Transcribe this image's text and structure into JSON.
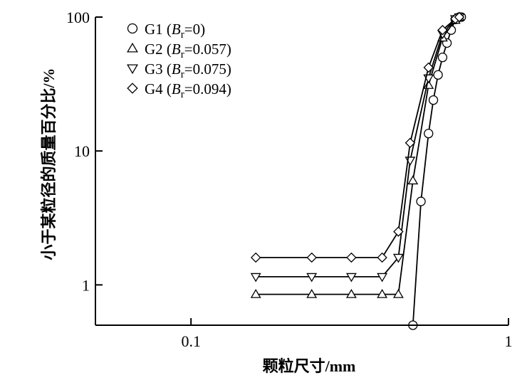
{
  "chart_data": {
    "type": "line",
    "xscale": "log",
    "yscale": "log",
    "xlim": [
      0.05,
      1
    ],
    "ylim": [
      0.5,
      100
    ],
    "xticks": [
      {
        "value": 0.1,
        "label": "0.1"
      },
      {
        "value": 1,
        "label": "1"
      }
    ],
    "yticks": [
      {
        "value": 1,
        "label": "1"
      },
      {
        "value": 10,
        "label": "10"
      },
      {
        "value": 100,
        "label": "100"
      }
    ],
    "xlabel": "颗粒尺寸/mm",
    "ylabel": "小于某粒径的质量百分比/%",
    "legend_position": "top-left",
    "series": [
      {
        "name": "G1",
        "legend": {
          "prefix": "G1 (",
          "italic": "B",
          "sub": "r",
          "suffix": "=0)"
        },
        "marker": "circle",
        "x": [
          0.5,
          0.53,
          0.56,
          0.58,
          0.6,
          0.62,
          0.64,
          0.66,
          0.68,
          0.7,
          0.71
        ],
        "y": [
          0.5,
          4.2,
          13.5,
          24,
          37,
          50,
          64,
          80,
          96,
          100,
          100
        ]
      },
      {
        "name": "G2",
        "legend": {
          "prefix": "G2 (",
          "italic": "B",
          "sub": "r",
          "suffix": "=0.057)"
        },
        "marker": "triangle-up",
        "x": [
          0.16,
          0.24,
          0.32,
          0.4,
          0.45,
          0.5,
          0.56,
          0.62,
          0.68,
          0.7
        ],
        "y": [
          0.85,
          0.85,
          0.85,
          0.85,
          0.85,
          6,
          31,
          70,
          95,
          100
        ]
      },
      {
        "name": "G3",
        "legend": {
          "prefix": "G3 (",
          "italic": "B",
          "sub": "r",
          "suffix": "=0.075)"
        },
        "marker": "triangle-down",
        "x": [
          0.16,
          0.24,
          0.32,
          0.4,
          0.45,
          0.49,
          0.56,
          0.62,
          0.68,
          0.7
        ],
        "y": [
          1.15,
          1.15,
          1.15,
          1.15,
          1.6,
          8.5,
          35,
          75,
          97,
          100
        ]
      },
      {
        "name": "G4",
        "legend": {
          "prefix": "G4 (",
          "italic": "B",
          "sub": "r",
          "suffix": "=0.094)"
        },
        "marker": "diamond",
        "x": [
          0.16,
          0.24,
          0.32,
          0.4,
          0.45,
          0.49,
          0.56,
          0.62,
          0.68,
          0.7
        ],
        "y": [
          1.6,
          1.6,
          1.6,
          1.6,
          2.5,
          11.5,
          42,
          80,
          97,
          100
        ]
      }
    ]
  }
}
